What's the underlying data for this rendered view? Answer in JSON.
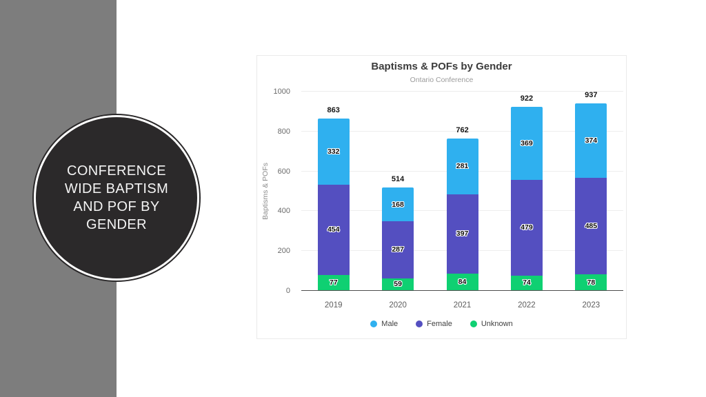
{
  "slide": {
    "accent_color": "#7d7d7d",
    "circle": {
      "bg_color": "#2b292a",
      "lines": [
        "CONFERENCE",
        "WIDE BAPTISM",
        "AND POF BY",
        "GENDER"
      ]
    }
  },
  "chart_data": {
    "type": "bar",
    "stacked": true,
    "title": "Baptisms & POFs by Gender",
    "subtitle": "Ontario Conference",
    "ylabel": "Baptisms & POFs",
    "xlabel": "",
    "categories": [
      "2019",
      "2020",
      "2021",
      "2022",
      "2023"
    ],
    "series": [
      {
        "name": "Male",
        "color": "#2fb0ef",
        "values": [
          332,
          168,
          281,
          369,
          374
        ]
      },
      {
        "name": "Female",
        "color": "#544fc0",
        "values": [
          454,
          287,
          397,
          479,
          485
        ]
      },
      {
        "name": "Unknown",
        "color": "#0fd072",
        "values": [
          77,
          59,
          84,
          74,
          78
        ]
      }
    ],
    "totals": [
      863,
      514,
      762,
      922,
      937
    ],
    "ylim": [
      0,
      1000
    ],
    "yticks": [
      0,
      200,
      400,
      600,
      800,
      1000
    ],
    "grid": true,
    "legend_position": "bottom",
    "colors": {
      "gridline": "#ededed",
      "axis_line": "#4d4d4d",
      "card_border": "#eaeaea"
    }
  }
}
